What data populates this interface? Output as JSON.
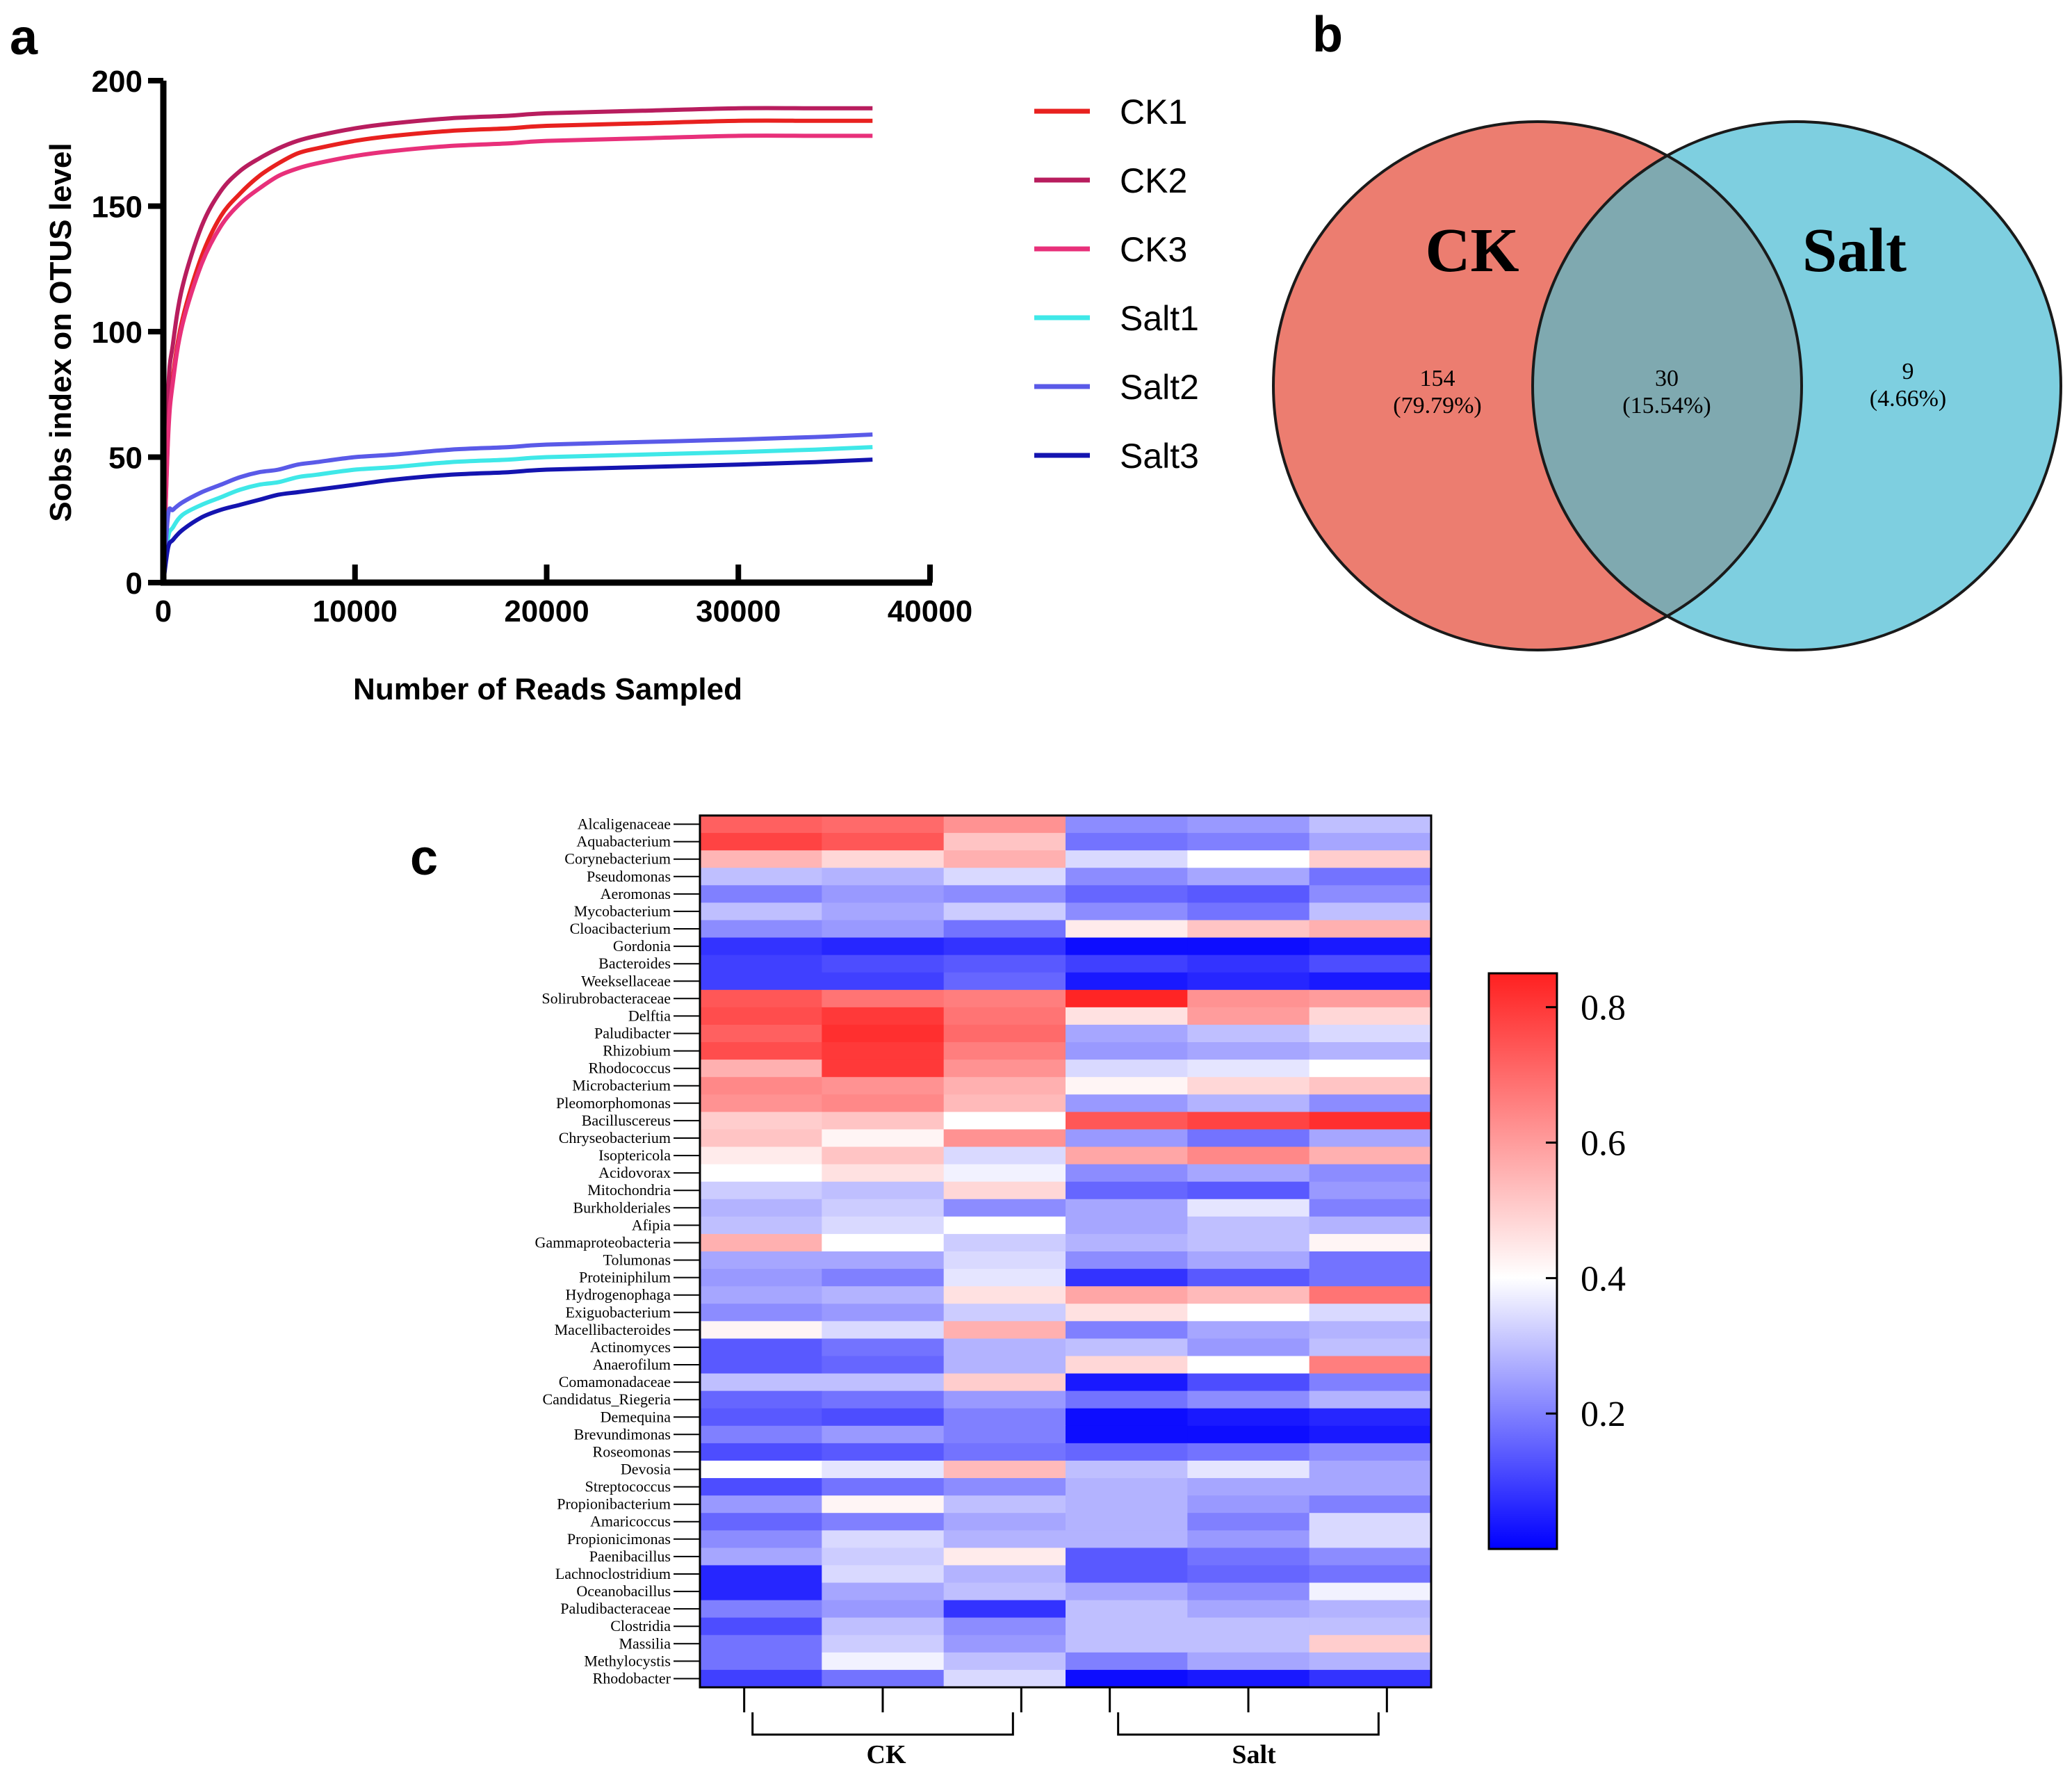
{
  "panels": {
    "a": "a",
    "b": "b",
    "c": "c"
  },
  "chart_data": [
    {
      "type": "line",
      "panel": "a",
      "title": "",
      "xlabel": "Number of Reads Sampled",
      "ylabel": "Sobs index on OTUS level",
      "xlim": [
        0,
        40000
      ],
      "ylim": [
        0,
        200
      ],
      "xticks": [
        0,
        10000,
        20000,
        30000,
        40000
      ],
      "xtick_labels": [
        "0",
        "10000",
        "20000",
        "30000",
        "40000"
      ],
      "yticks": [
        0,
        50,
        100,
        150,
        200
      ],
      "ytick_labels": [
        "0",
        "50",
        "100",
        "150",
        "200"
      ],
      "legend_position": "right",
      "x": [
        0,
        250,
        500,
        1000,
        2000,
        3000,
        4000,
        5000,
        6000,
        7000,
        8000,
        10000,
        12000,
        15000,
        18000,
        20000,
        25000,
        30000,
        34000,
        37000
      ],
      "series": [
        {
          "name": "CK1",
          "color": "#e8211f",
          "values": [
            0,
            60,
            82,
            105,
            130,
            146,
            155,
            162,
            167,
            171,
            173,
            176,
            178,
            180,
            181,
            182,
            183,
            184,
            184,
            184
          ]
        },
        {
          "name": "CK2",
          "color": "#b81d5e",
          "values": [
            0,
            75,
            95,
            118,
            142,
            156,
            164,
            169,
            173,
            176,
            178,
            181,
            183,
            185,
            186,
            187,
            188,
            189,
            189,
            189
          ]
        },
        {
          "name": "CK3",
          "color": "#e8307a",
          "values": [
            0,
            58,
            80,
            103,
            127,
            142,
            151,
            157,
            162,
            165,
            167,
            170,
            172,
            174,
            175,
            176,
            177,
            178,
            178,
            178
          ]
        },
        {
          "name": "Salt1",
          "color": "#3fe8e8",
          "values": [
            0,
            18,
            22,
            27,
            31,
            34,
            37,
            39,
            40,
            42,
            43,
            45,
            46,
            48,
            49,
            50,
            51,
            52,
            53,
            54
          ]
        },
        {
          "name": "Salt2",
          "color": "#5a5ae8",
          "values": [
            0,
            27,
            29,
            32,
            36,
            39,
            42,
            44,
            45,
            47,
            48,
            50,
            51,
            53,
            54,
            55,
            56,
            57,
            58,
            59
          ]
        },
        {
          "name": "Salt3",
          "color": "#1414b0",
          "values": [
            0,
            14,
            17,
            21,
            26,
            29,
            31,
            33,
            35,
            36,
            37,
            39,
            41,
            43,
            44,
            45,
            46,
            47,
            48,
            49
          ]
        }
      ]
    },
    {
      "type": "venn",
      "panel": "b",
      "sets": [
        {
          "name": "CK",
          "color": "#ec7d70"
        },
        {
          "name": "Salt",
          "color": "#7ecfe0"
        }
      ],
      "overlap_color": "#7fa9b0",
      "regions": [
        {
          "set": "CK only",
          "count": "154",
          "percent": "(79.79%)"
        },
        {
          "set": "CK ∩ Salt",
          "count": "30",
          "percent": "(15.54%)"
        },
        {
          "set": "Salt only",
          "count": "9",
          "percent": "(4.66%)"
        }
      ]
    },
    {
      "type": "heatmap",
      "panel": "c",
      "colorbar": {
        "min": 0.0,
        "max": 0.85,
        "ticks": [
          0.2,
          0.4,
          0.6,
          0.8
        ],
        "tick_labels": [
          "0.2",
          "0.4",
          "0.6",
          "0.8"
        ],
        "low_color": "#0000ff",
        "mid_color": "#ffffff",
        "high_color": "#ff2020",
        "mid_value": 0.4
      },
      "groups": [
        {
          "label": "CK",
          "columns": [
            0,
            1,
            2
          ]
        },
        {
          "label": "Salt",
          "columns": [
            3,
            4,
            5
          ]
        }
      ],
      "rows": [
        "Alcaligenaceae",
        "Aquabacterium",
        "Corynebacterium",
        "Pseudomonas",
        "Aeromonas",
        "Mycobacterium",
        "Cloacibacterium",
        "Gordonia",
        "Bacteroides",
        "Weeksellaceae",
        "Solirubrobacteraceae",
        "Delftia",
        "Paludibacter",
        "Rhizobium",
        "Rhodococcus",
        "Microbacterium",
        "Pleomorphomonas",
        "Bacilluscereus",
        "Chryseobacterium",
        "Isoptericola",
        "Acidovorax",
        "Mitochondria",
        "Burkholderiales",
        "Afipia",
        "Gammaproteobacteria",
        "Tolumonas",
        "Proteiniphilum",
        "Hydrogenophaga",
        "Exiguobacterium",
        "Macellibacteroides",
        "Actinomyces",
        "Anaerofilum",
        "Comamonadaceae",
        "Candidatus_Riegeria",
        "Demequina",
        "Brevundimonas",
        "Roseomonas",
        "Devosia",
        "Streptococcus",
        "Propionibacterium",
        "Amaricoccus",
        "Propionicimonas",
        "Paenibacillus",
        "Lachnoclostridium",
        "Oceanobacillus",
        "Paludibacteraceae",
        "Clostridia",
        "Massilia",
        "Methylocystis",
        "Rhodobacter"
      ],
      "values": [
        [
          0.72,
          0.7,
          0.62,
          0.22,
          0.24,
          0.3
        ],
        [
          0.78,
          0.74,
          0.52,
          0.18,
          0.2,
          0.26
        ],
        [
          0.55,
          0.48,
          0.56,
          0.34,
          0.4,
          0.5
        ],
        [
          0.3,
          0.28,
          0.34,
          0.22,
          0.26,
          0.18
        ],
        [
          0.2,
          0.24,
          0.22,
          0.16,
          0.14,
          0.22
        ],
        [
          0.3,
          0.26,
          0.32,
          0.22,
          0.18,
          0.3
        ],
        [
          0.22,
          0.24,
          0.18,
          0.44,
          0.52,
          0.56
        ],
        [
          0.08,
          0.06,
          0.08,
          0.02,
          0.02,
          0.04
        ],
        [
          0.1,
          0.12,
          0.14,
          0.1,
          0.08,
          0.12
        ],
        [
          0.1,
          0.1,
          0.16,
          0.04,
          0.06,
          0.04
        ],
        [
          0.74,
          0.68,
          0.66,
          0.84,
          0.62,
          0.6
        ],
        [
          0.76,
          0.8,
          0.68,
          0.46,
          0.6,
          0.48
        ],
        [
          0.72,
          0.82,
          0.7,
          0.26,
          0.3,
          0.34
        ],
        [
          0.76,
          0.8,
          0.66,
          0.24,
          0.26,
          0.28
        ],
        [
          0.56,
          0.8,
          0.62,
          0.34,
          0.36,
          0.4
        ],
        [
          0.64,
          0.62,
          0.56,
          0.42,
          0.48,
          0.52
        ],
        [
          0.62,
          0.64,
          0.54,
          0.24,
          0.28,
          0.22
        ],
        [
          0.5,
          0.52,
          0.4,
          0.74,
          0.78,
          0.82
        ],
        [
          0.52,
          0.42,
          0.62,
          0.24,
          0.18,
          0.26
        ],
        [
          0.44,
          0.52,
          0.34,
          0.58,
          0.64,
          0.56
        ],
        [
          0.4,
          0.46,
          0.38,
          0.22,
          0.26,
          0.22
        ],
        [
          0.32,
          0.3,
          0.48,
          0.16,
          0.14,
          0.24
        ],
        [
          0.28,
          0.32,
          0.22,
          0.26,
          0.36,
          0.2
        ],
        [
          0.3,
          0.34,
          0.4,
          0.26,
          0.3,
          0.28
        ],
        [
          0.56,
          0.4,
          0.32,
          0.28,
          0.3,
          0.42
        ],
        [
          0.26,
          0.26,
          0.34,
          0.22,
          0.26,
          0.18
        ],
        [
          0.24,
          0.2,
          0.36,
          0.08,
          0.14,
          0.18
        ],
        [
          0.26,
          0.28,
          0.46,
          0.58,
          0.54,
          0.68
        ],
        [
          0.22,
          0.24,
          0.32,
          0.46,
          0.4,
          0.34
        ],
        [
          0.42,
          0.34,
          0.56,
          0.2,
          0.26,
          0.28
        ],
        [
          0.14,
          0.18,
          0.28,
          0.3,
          0.24,
          0.3
        ],
        [
          0.14,
          0.16,
          0.28,
          0.48,
          0.4,
          0.66
        ],
        [
          0.3,
          0.3,
          0.5,
          0.04,
          0.12,
          0.2
        ],
        [
          0.16,
          0.18,
          0.24,
          0.18,
          0.22,
          0.28
        ],
        [
          0.14,
          0.12,
          0.2,
          0.02,
          0.04,
          0.06
        ],
        [
          0.2,
          0.24,
          0.2,
          0.02,
          0.02,
          0.04
        ],
        [
          0.12,
          0.14,
          0.18,
          0.16,
          0.18,
          0.22
        ],
        [
          0.4,
          0.36,
          0.54,
          0.3,
          0.36,
          0.26
        ],
        [
          0.12,
          0.18,
          0.22,
          0.28,
          0.26,
          0.26
        ],
        [
          0.24,
          0.42,
          0.3,
          0.28,
          0.24,
          0.2
        ],
        [
          0.16,
          0.2,
          0.26,
          0.28,
          0.2,
          0.34
        ],
        [
          0.22,
          0.34,
          0.28,
          0.28,
          0.24,
          0.34
        ],
        [
          0.26,
          0.32,
          0.44,
          0.14,
          0.18,
          0.22
        ],
        [
          0.06,
          0.34,
          0.28,
          0.14,
          0.16,
          0.18
        ],
        [
          0.06,
          0.26,
          0.3,
          0.26,
          0.22,
          0.38
        ],
        [
          0.2,
          0.24,
          0.08,
          0.3,
          0.26,
          0.28
        ],
        [
          0.12,
          0.3,
          0.22,
          0.3,
          0.3,
          0.3
        ],
        [
          0.18,
          0.32,
          0.24,
          0.3,
          0.3,
          0.5
        ],
        [
          0.18,
          0.38,
          0.3,
          0.2,
          0.26,
          0.28
        ],
        [
          0.1,
          0.18,
          0.34,
          0.02,
          0.04,
          0.08
        ]
      ]
    }
  ]
}
